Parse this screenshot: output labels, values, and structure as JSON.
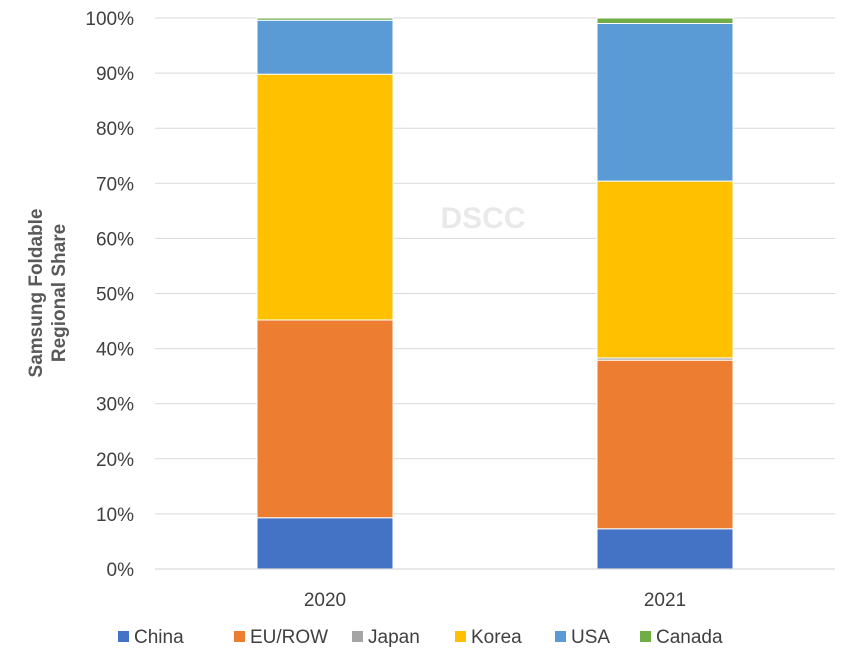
{
  "chart_data": {
    "type": "bar",
    "stacked": true,
    "title": "",
    "xlabel": "",
    "ylabel_lines": [
      "Samsung Foldable",
      "Regional Share"
    ],
    "watermark": "DSCC",
    "categories": [
      "2020",
      "2021"
    ],
    "ylim": [
      0,
      100
    ],
    "y_ticks": [
      0,
      10,
      20,
      30,
      40,
      50,
      60,
      70,
      80,
      90,
      100
    ],
    "y_tick_labels": [
      "0%",
      "10%",
      "20%",
      "30%",
      "40%",
      "50%",
      "60%",
      "70%",
      "80%",
      "90%",
      "100%"
    ],
    "grid": true,
    "legend_position": "bottom",
    "series": [
      {
        "name": "China",
        "color": "#4472C4",
        "values": [
          9.3,
          7.3
        ]
      },
      {
        "name": "EU/ROW",
        "color": "#ED7D31",
        "values": [
          35.9,
          30.6
        ]
      },
      {
        "name": "Japan",
        "color": "#A5A5A5",
        "values": [
          0.0,
          0.4
        ]
      },
      {
        "name": "Korea",
        "color": "#FFC000",
        "values": [
          44.6,
          32.1
        ]
      },
      {
        "name": "USA",
        "color": "#5B9BD5",
        "values": [
          9.8,
          28.6
        ]
      },
      {
        "name": "Canada",
        "color": "#70AD47",
        "values": [
          0.4,
          1.0
        ]
      }
    ]
  }
}
